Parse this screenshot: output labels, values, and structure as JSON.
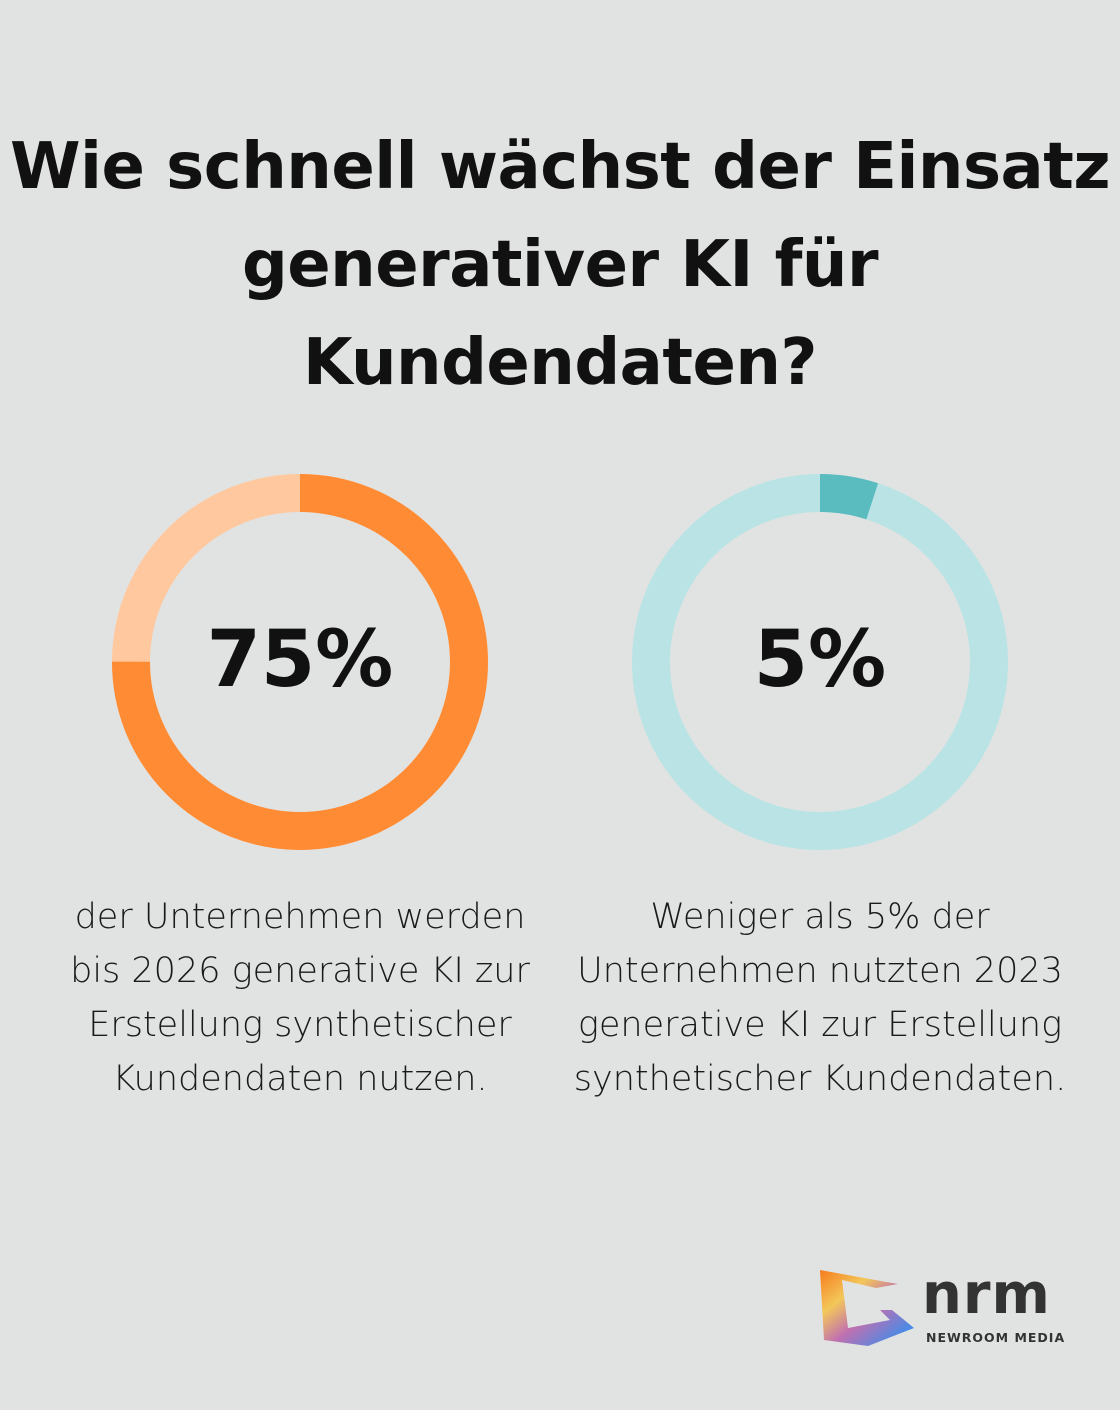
{
  "title": "Wie schnell wächst der Einsatz generativer KI für Kundendaten?",
  "chart_data": [
    {
      "type": "pie",
      "variant": "donut",
      "value": 75,
      "label": "75%",
      "description": "der Unternehmen werden bis 2026 generative KI zur Erstellung synthetischer Kundendaten nutzen.",
      "colors": {
        "fill": "#ff8c35",
        "track": "#ffc89e"
      }
    },
    {
      "type": "pie",
      "variant": "donut",
      "value": 5,
      "label": "5%",
      "description": "Weniger als 5% der Unternehmen nutzten 2023 generative KI zur Erstellung synthetischer Kundendaten.",
      "colors": {
        "fill": "#5bbcc0",
        "track": "#b9e3e4"
      }
    }
  ],
  "logo": {
    "text": "nrm",
    "subtitle": "NEWROOM MEDIA"
  }
}
